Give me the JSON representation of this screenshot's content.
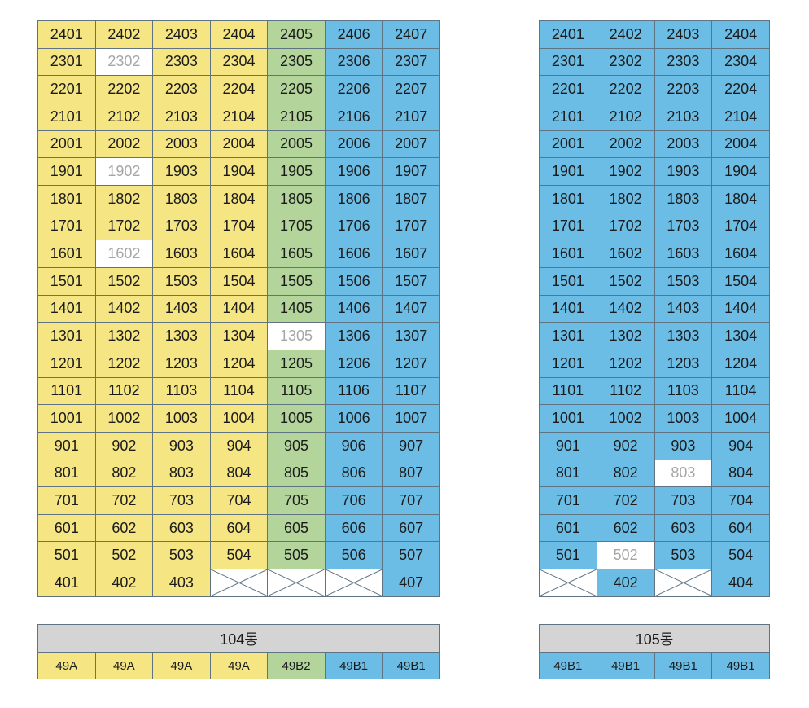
{
  "buildings": [
    {
      "name": "104동",
      "columns": [
        {
          "type": "49A",
          "color": "y"
        },
        {
          "type": "49A",
          "color": "y"
        },
        {
          "type": "49A",
          "color": "y"
        },
        {
          "type": "49A",
          "color": "y"
        },
        {
          "type": "49B2",
          "color": "g"
        },
        {
          "type": "49B1",
          "color": "b"
        },
        {
          "type": "49B1",
          "color": "b"
        }
      ],
      "rows": [
        [
          "2401",
          "2402",
          "2403",
          "2404",
          "2405",
          "2406",
          "2407"
        ],
        [
          "2301",
          "2302",
          "2303",
          "2304",
          "2305",
          "2306",
          "2307"
        ],
        [
          "2201",
          "2202",
          "2203",
          "2204",
          "2205",
          "2206",
          "2207"
        ],
        [
          "2101",
          "2102",
          "2103",
          "2104",
          "2105",
          "2106",
          "2107"
        ],
        [
          "2001",
          "2002",
          "2003",
          "2004",
          "2005",
          "2006",
          "2007"
        ],
        [
          "1901",
          "1902",
          "1903",
          "1904",
          "1905",
          "1906",
          "1907"
        ],
        [
          "1801",
          "1802",
          "1803",
          "1804",
          "1805",
          "1806",
          "1807"
        ],
        [
          "1701",
          "1702",
          "1703",
          "1704",
          "1705",
          "1706",
          "1707"
        ],
        [
          "1601",
          "1602",
          "1603",
          "1604",
          "1605",
          "1606",
          "1607"
        ],
        [
          "1501",
          "1502",
          "1503",
          "1504",
          "1505",
          "1506",
          "1507"
        ],
        [
          "1401",
          "1402",
          "1403",
          "1404",
          "1405",
          "1406",
          "1407"
        ],
        [
          "1301",
          "1302",
          "1303",
          "1304",
          "1305",
          "1306",
          "1307"
        ],
        [
          "1201",
          "1202",
          "1203",
          "1204",
          "1205",
          "1206",
          "1207"
        ],
        [
          "1101",
          "1102",
          "1103",
          "1104",
          "1105",
          "1106",
          "1107"
        ],
        [
          "1001",
          "1002",
          "1003",
          "1004",
          "1005",
          "1006",
          "1007"
        ],
        [
          "901",
          "902",
          "903",
          "904",
          "905",
          "906",
          "907"
        ],
        [
          "801",
          "802",
          "803",
          "804",
          "805",
          "806",
          "807"
        ],
        [
          "701",
          "702",
          "703",
          "704",
          "705",
          "706",
          "707"
        ],
        [
          "601",
          "602",
          "603",
          "604",
          "605",
          "606",
          "607"
        ],
        [
          "501",
          "502",
          "503",
          "504",
          "505",
          "506",
          "507"
        ],
        [
          "401",
          "402",
          "403",
          null,
          null,
          null,
          "407"
        ]
      ],
      "unavailable": [
        "2302",
        "1902",
        "1602",
        "1305"
      ]
    },
    {
      "name": "105동",
      "columns": [
        {
          "type": "49B1",
          "color": "b"
        },
        {
          "type": "49B1",
          "color": "b"
        },
        {
          "type": "49B1",
          "color": "b"
        },
        {
          "type": "49B1",
          "color": "b"
        }
      ],
      "rows": [
        [
          "2401",
          "2402",
          "2403",
          "2404"
        ],
        [
          "2301",
          "2302",
          "2303",
          "2304"
        ],
        [
          "2201",
          "2202",
          "2203",
          "2204"
        ],
        [
          "2101",
          "2102",
          "2103",
          "2104"
        ],
        [
          "2001",
          "2002",
          "2003",
          "2004"
        ],
        [
          "1901",
          "1902",
          "1903",
          "1904"
        ],
        [
          "1801",
          "1802",
          "1803",
          "1804"
        ],
        [
          "1701",
          "1702",
          "1703",
          "1704"
        ],
        [
          "1601",
          "1602",
          "1603",
          "1604"
        ],
        [
          "1501",
          "1502",
          "1503",
          "1504"
        ],
        [
          "1401",
          "1402",
          "1403",
          "1404"
        ],
        [
          "1301",
          "1302",
          "1303",
          "1304"
        ],
        [
          "1201",
          "1202",
          "1203",
          "1204"
        ],
        [
          "1101",
          "1102",
          "1103",
          "1104"
        ],
        [
          "1001",
          "1002",
          "1003",
          "1004"
        ],
        [
          "901",
          "902",
          "903",
          "904"
        ],
        [
          "801",
          "802",
          "803",
          "804"
        ],
        [
          "701",
          "702",
          "703",
          "704"
        ],
        [
          "601",
          "602",
          "603",
          "604"
        ],
        [
          "501",
          "502",
          "503",
          "504"
        ],
        [
          null,
          "402",
          null,
          "404"
        ]
      ],
      "unavailable": [
        "803",
        "502"
      ]
    }
  ],
  "colors": {
    "y": "#f5e683",
    "g": "#b3d49b",
    "b": "#6cbde6",
    "unavailable": "#ffffff",
    "border": "#5f7382",
    "header": "#d4d4d4"
  }
}
